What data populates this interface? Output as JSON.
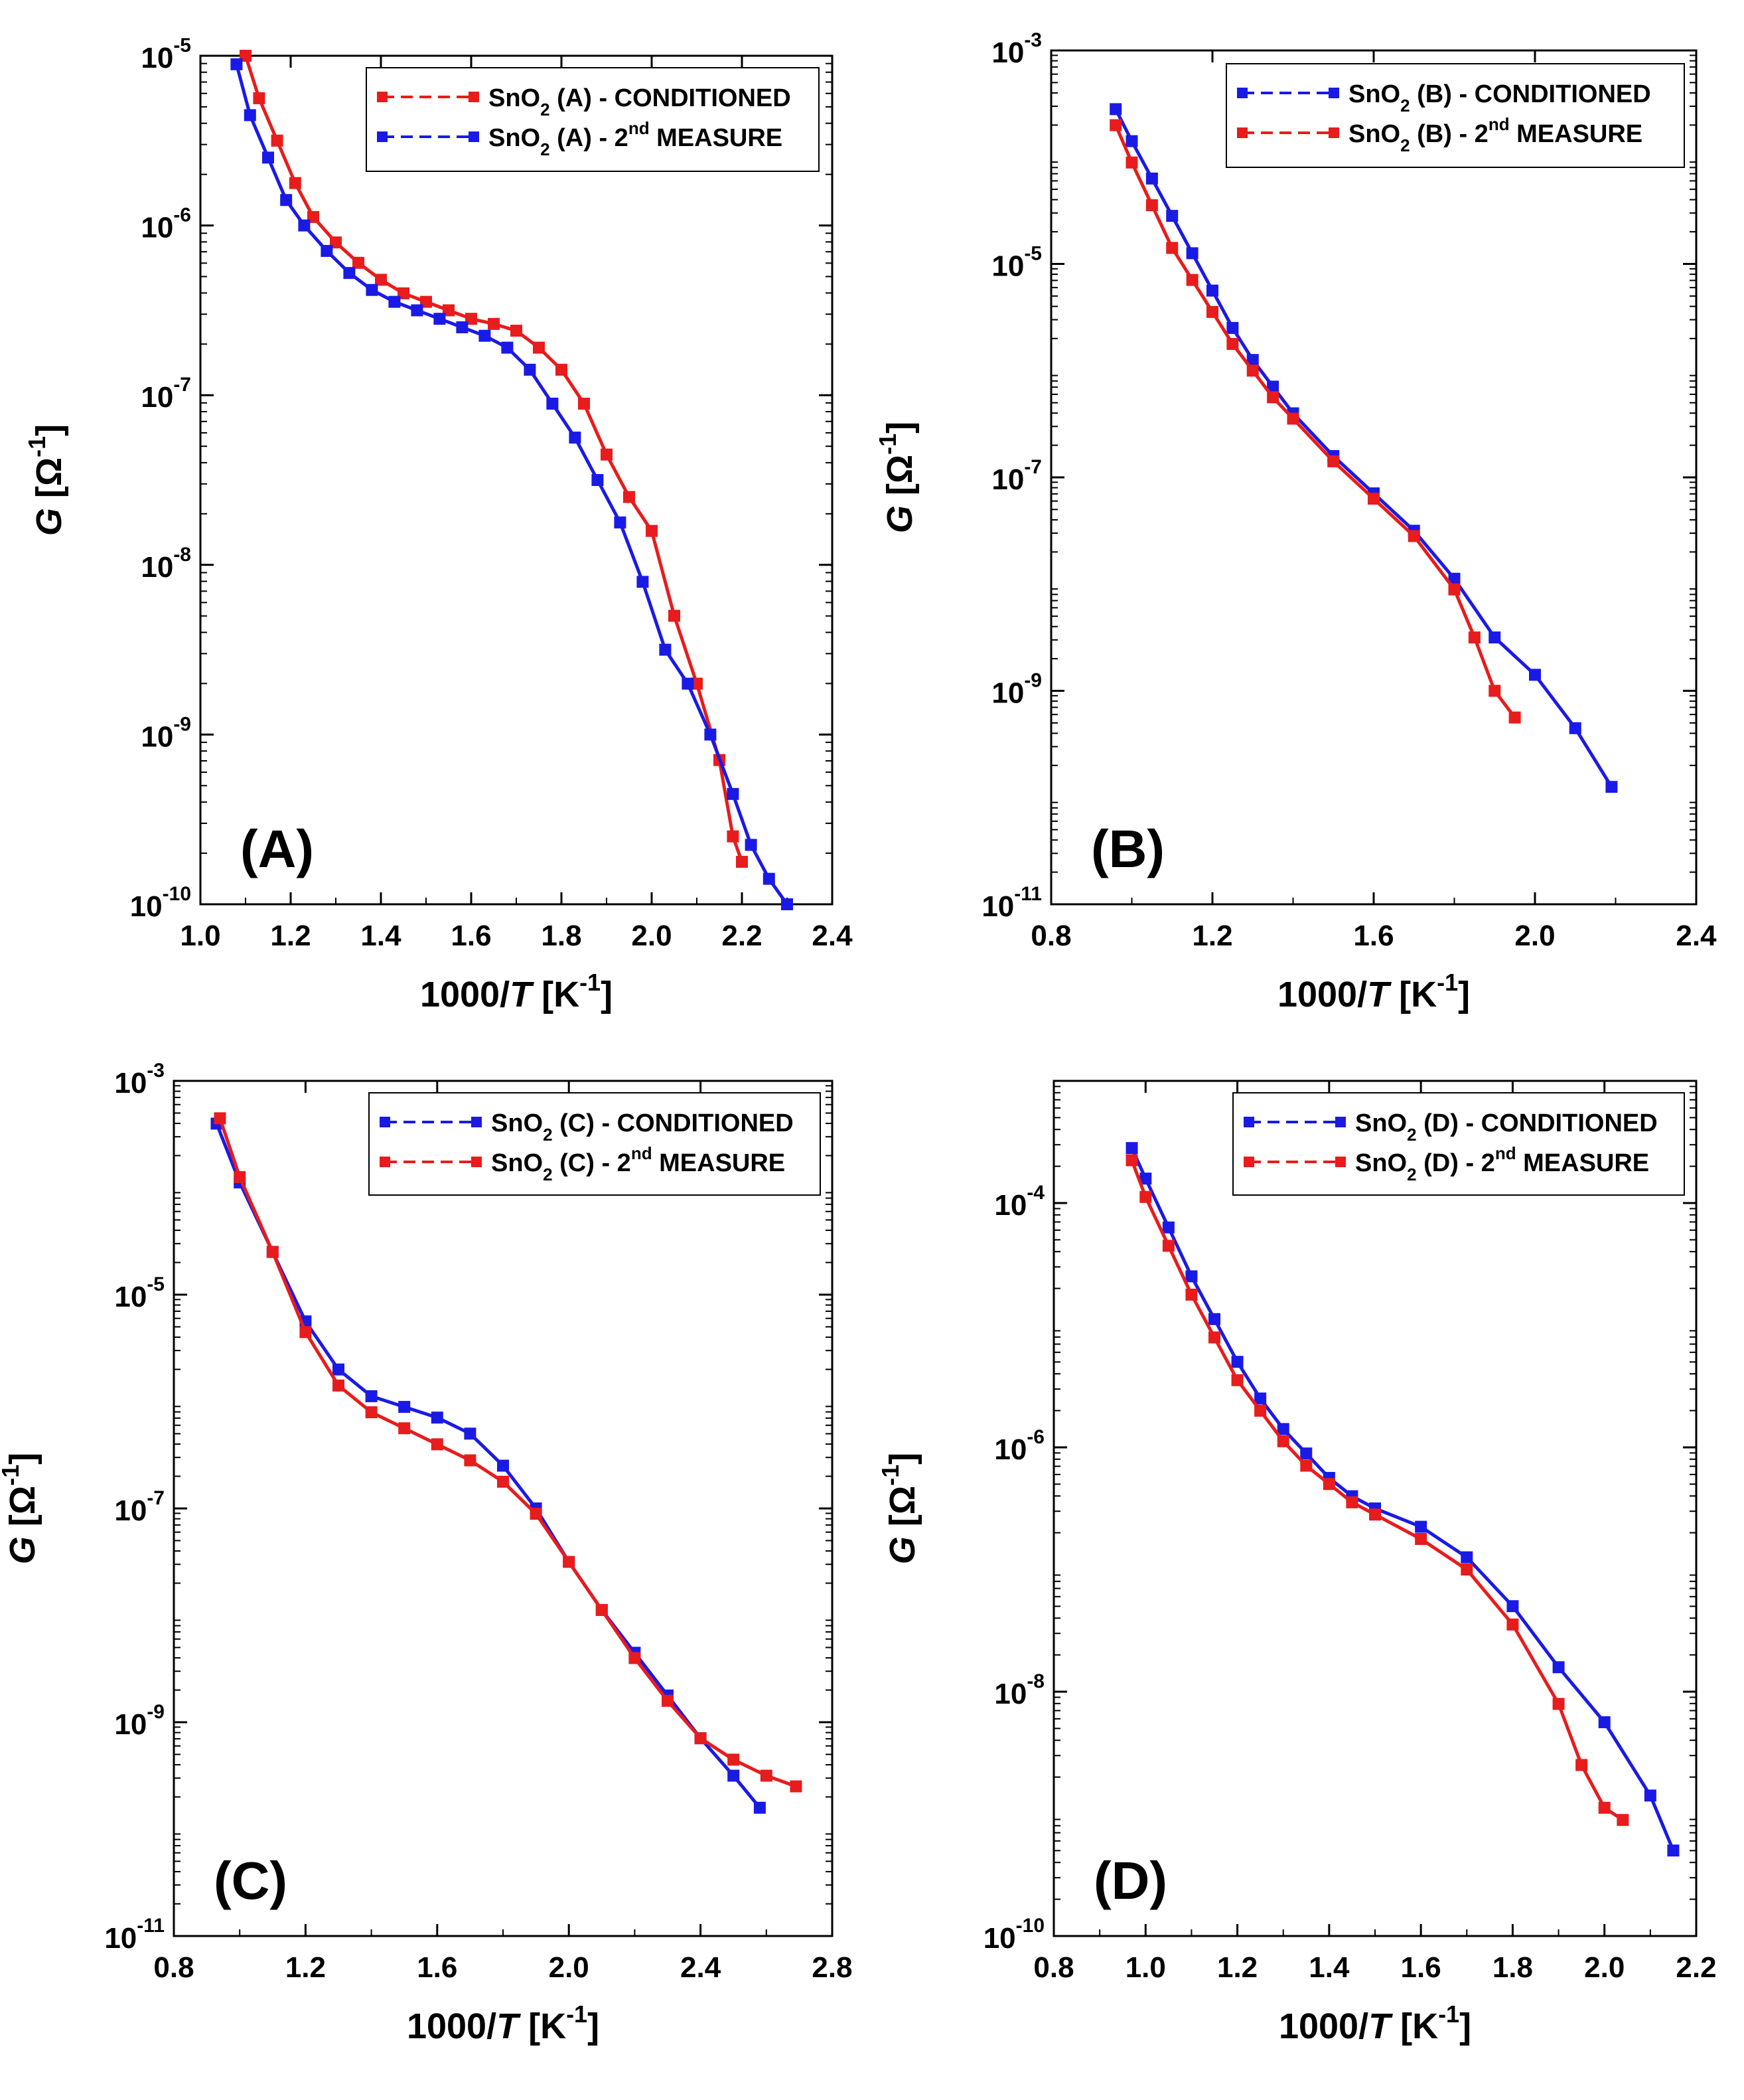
{
  "chart_data": [
    {
      "id": "A",
      "type": "line",
      "panel_label": "(A)",
      "xlabel": "1000/T [K-1]",
      "xlabel_parts": {
        "pre": "1000/",
        "var": "T",
        "unit": " [K",
        "sup": "-1",
        "post": "]"
      },
      "ylabel_parts": {
        "var": "G",
        "unit": " [Ω",
        "sup": "-1",
        "post": "]"
      },
      "xlim": [
        1.0,
        2.4
      ],
      "xticks": [
        "1.0",
        "1.2",
        "1.4",
        "1.6",
        "1.8",
        "2.0",
        "2.2",
        "2.4"
      ],
      "yscale": "log",
      "ylim_exp": [
        -10,
        -5
      ],
      "yticks": [
        {
          "base": "10",
          "exp": "-5",
          "e": -5
        },
        {
          "base": "10",
          "exp": "-6",
          "e": -6
        },
        {
          "base": "10",
          "exp": "-7",
          "e": -7
        },
        {
          "base": "10",
          "exp": "-8",
          "e": -8
        },
        {
          "base": "10",
          "exp": "-9",
          "e": -9
        },
        {
          "base": "10",
          "exp": "-10",
          "e": -10
        }
      ],
      "legend_position": "top-right",
      "series": [
        {
          "name": "SnO2 (A) - CONDITIONED",
          "legend": {
            "pre": "SnO",
            "sub": "2",
            "mid": " (A) - CONDITIONED",
            "sup": "",
            "post": ""
          },
          "color": "#e81c1c",
          "x": [
            1.1,
            1.13,
            1.17,
            1.21,
            1.25,
            1.3,
            1.35,
            1.4,
            1.45,
            1.5,
            1.55,
            1.6,
            1.65,
            1.7,
            1.75,
            1.8,
            1.85,
            1.9,
            1.95,
            2.0,
            2.05,
            2.1,
            2.15,
            2.18,
            2.2
          ],
          "log10_y": [
            -5.0,
            -5.25,
            -5.5,
            -5.75,
            -5.95,
            -6.1,
            -6.22,
            -6.32,
            -6.4,
            -6.45,
            -6.5,
            -6.55,
            -6.58,
            -6.62,
            -6.72,
            -6.85,
            -7.05,
            -7.35,
            -7.6,
            -7.8,
            -8.3,
            -8.7,
            -9.15,
            -9.6,
            -9.75
          ]
        },
        {
          "name": "SnO2 (A) - 2nd MEASURE",
          "legend": {
            "pre": "SnO",
            "sub": "2",
            "mid": " (A) - 2",
            "sup": "nd",
            "post": " MEASURE"
          },
          "color": "#1a1ae6",
          "x": [
            1.08,
            1.11,
            1.15,
            1.19,
            1.23,
            1.28,
            1.33,
            1.38,
            1.43,
            1.48,
            1.53,
            1.58,
            1.63,
            1.68,
            1.73,
            1.78,
            1.83,
            1.88,
            1.93,
            1.98,
            2.03,
            2.08,
            2.13,
            2.18,
            2.22,
            2.26,
            2.3
          ],
          "log10_y": [
            -5.05,
            -5.35,
            -5.6,
            -5.85,
            -6.0,
            -6.15,
            -6.28,
            -6.38,
            -6.45,
            -6.5,
            -6.55,
            -6.6,
            -6.65,
            -6.72,
            -6.85,
            -7.05,
            -7.25,
            -7.5,
            -7.75,
            -8.1,
            -8.5,
            -8.7,
            -9.0,
            -9.35,
            -9.65,
            -9.85,
            -10.0
          ]
        }
      ]
    },
    {
      "id": "B",
      "type": "line",
      "panel_label": "(B)",
      "xlabel": "1000/T [K-1]",
      "xlabel_parts": {
        "pre": "1000/",
        "var": "T",
        "unit": " [K",
        "sup": "-1",
        "post": "]"
      },
      "ylabel_parts": {
        "var": "G",
        "unit": " [Ω",
        "sup": "-1",
        "post": "]"
      },
      "xlim": [
        0.8,
        2.4
      ],
      "xticks": [
        "0.8",
        "1.2",
        "1.6",
        "2.0",
        "2.4"
      ],
      "yscale": "log",
      "ylim_exp": [
        -11,
        -3
      ],
      "yticks": [
        {
          "base": "10",
          "exp": "-3",
          "e": -3
        },
        {
          "base": "10",
          "exp": "-5",
          "e": -5
        },
        {
          "base": "10",
          "exp": "-7",
          "e": -7
        },
        {
          "base": "10",
          "exp": "-9",
          "e": -9
        },
        {
          "base": "10",
          "exp": "-11",
          "e": -11
        }
      ],
      "legend_position": "top-right",
      "series": [
        {
          "name": "SnO2 (B) - CONDITIONED",
          "legend": {
            "pre": "SnO",
            "sub": "2",
            "mid": " (B) - CONDITIONED",
            "sup": "",
            "post": ""
          },
          "color": "#1a1ae6",
          "x": [
            0.96,
            1.0,
            1.05,
            1.1,
            1.15,
            1.2,
            1.25,
            1.3,
            1.35,
            1.4,
            1.5,
            1.6,
            1.7,
            1.8,
            1.9,
            2.0,
            2.1,
            2.19
          ],
          "log10_y": [
            -3.55,
            -3.85,
            -4.2,
            -4.55,
            -4.9,
            -5.25,
            -5.6,
            -5.9,
            -6.15,
            -6.4,
            -6.8,
            -7.15,
            -7.5,
            -7.95,
            -8.5,
            -8.85,
            -9.35,
            -9.9
          ]
        },
        {
          "name": "SnO2 (B) - 2nd MEASURE",
          "legend": {
            "pre": "SnO",
            "sub": "2",
            "mid": " (B) - 2",
            "sup": "nd",
            "post": " MEASURE"
          },
          "color": "#e81c1c",
          "x": [
            0.96,
            1.0,
            1.05,
            1.1,
            1.15,
            1.2,
            1.25,
            1.3,
            1.35,
            1.4,
            1.5,
            1.6,
            1.7,
            1.8,
            1.85,
            1.9,
            1.95
          ],
          "log10_y": [
            -3.7,
            -4.05,
            -4.45,
            -4.85,
            -5.15,
            -5.45,
            -5.75,
            -6.0,
            -6.25,
            -6.45,
            -6.85,
            -7.2,
            -7.55,
            -8.05,
            -8.5,
            -9.0,
            -9.25
          ]
        }
      ]
    },
    {
      "id": "C",
      "type": "line",
      "panel_label": "(C)",
      "xlabel": "1000/T [K-1]",
      "xlabel_parts": {
        "pre": "1000/",
        "var": "T",
        "unit": " [K",
        "sup": "-1",
        "post": "]"
      },
      "ylabel_parts": {
        "var": "G",
        "unit": " [Ω",
        "sup": "-1",
        "post": "]"
      },
      "xlim": [
        0.8,
        2.8
      ],
      "xticks": [
        "0.8",
        "1.2",
        "1.6",
        "2.0",
        "2.4",
        "2.8"
      ],
      "yscale": "log",
      "ylim_exp": [
        -11,
        -3
      ],
      "yticks": [
        {
          "base": "10",
          "exp": "-3",
          "e": -3
        },
        {
          "base": "10",
          "exp": "-5",
          "e": -5
        },
        {
          "base": "10",
          "exp": "-7",
          "e": -7
        },
        {
          "base": "10",
          "exp": "-9",
          "e": -9
        },
        {
          "base": "10",
          "exp": "-11",
          "e": -11
        }
      ],
      "legend_position": "top-right",
      "series": [
        {
          "name": "SnO2 (C) - CONDITIONED",
          "legend": {
            "pre": "SnO",
            "sub": "2",
            "mid": " (C) - CONDITIONED",
            "sup": "",
            "post": ""
          },
          "color": "#1a1ae6",
          "x": [
            0.93,
            1.0,
            1.1,
            1.2,
            1.3,
            1.4,
            1.5,
            1.6,
            1.7,
            1.8,
            1.9,
            2.0,
            2.1,
            2.2,
            2.3,
            2.4,
            2.5,
            2.58
          ],
          "log10_y": [
            -3.4,
            -3.95,
            -4.6,
            -5.25,
            -5.7,
            -5.95,
            -6.05,
            -6.15,
            -6.3,
            -6.6,
            -7.0,
            -7.5,
            -7.95,
            -8.35,
            -8.75,
            -9.15,
            -9.5,
            -9.8
          ]
        },
        {
          "name": "SnO2 (C) - 2nd MEASURE",
          "legend": {
            "pre": "SnO",
            "sub": "2",
            "mid": " (C) - 2",
            "sup": "nd",
            "post": " MEASURE"
          },
          "color": "#e81c1c",
          "x": [
            0.94,
            1.0,
            1.1,
            1.2,
            1.3,
            1.4,
            1.5,
            1.6,
            1.7,
            1.8,
            1.9,
            2.0,
            2.1,
            2.2,
            2.3,
            2.4,
            2.5,
            2.6,
            2.69
          ],
          "log10_y": [
            -3.35,
            -3.9,
            -4.6,
            -5.35,
            -5.85,
            -6.1,
            -6.25,
            -6.4,
            -6.55,
            -6.75,
            -7.05,
            -7.5,
            -7.95,
            -8.4,
            -8.8,
            -9.15,
            -9.35,
            -9.5,
            -9.6
          ]
        }
      ]
    },
    {
      "id": "D",
      "type": "line",
      "panel_label": "(D)",
      "xlabel": "1000/T [K-1]",
      "xlabel_parts": {
        "pre": "1000/",
        "var": "T",
        "unit": " [K",
        "sup": "-1",
        "post": "]"
      },
      "ylabel_parts": {
        "var": "G",
        "unit": " [Ω",
        "sup": "-1",
        "post": "]"
      },
      "xlim": [
        0.8,
        2.2
      ],
      "xticks": [
        "0.8",
        "1.0",
        "1.2",
        "1.4",
        "1.6",
        "1.8",
        "2.0",
        "2.2"
      ],
      "yscale": "log",
      "ylim_exp": [
        -10,
        -3
      ],
      "yticks": [
        {
          "base": "10",
          "exp": "-4",
          "e": -4
        },
        {
          "base": "10",
          "exp": "-6",
          "e": -6
        },
        {
          "base": "10",
          "exp": "-8",
          "e": -8
        },
        {
          "base": "10",
          "exp": "-10",
          "e": -10
        }
      ],
      "legend_position": "top-right",
      "series": [
        {
          "name": "SnO2 (D) - CONDITIONED",
          "legend": {
            "pre": "SnO",
            "sub": "2",
            "mid": " (D) - CONDITIONED",
            "sup": "",
            "post": ""
          },
          "color": "#1a1ae6",
          "x": [
            0.97,
            1.0,
            1.05,
            1.1,
            1.15,
            1.2,
            1.25,
            1.3,
            1.35,
            1.4,
            1.45,
            1.5,
            1.6,
            1.7,
            1.8,
            1.9,
            2.0,
            2.1,
            2.15
          ],
          "log10_y": [
            -3.55,
            -3.8,
            -4.2,
            -4.6,
            -4.95,
            -5.3,
            -5.6,
            -5.85,
            -6.05,
            -6.25,
            -6.4,
            -6.5,
            -6.65,
            -6.9,
            -7.3,
            -7.8,
            -8.25,
            -8.85,
            -9.3
          ]
        },
        {
          "name": "SnO2 (D) - 2nd MEASURE",
          "legend": {
            "pre": "SnO",
            "sub": "2",
            "mid": " (D) - 2",
            "sup": "nd",
            "post": " MEASURE"
          },
          "color": "#e81c1c",
          "x": [
            0.97,
            1.0,
            1.05,
            1.1,
            1.15,
            1.2,
            1.25,
            1.3,
            1.35,
            1.4,
            1.45,
            1.5,
            1.6,
            1.7,
            1.8,
            1.9,
            1.95,
            2.0,
            2.04
          ],
          "log10_y": [
            -3.65,
            -3.95,
            -4.35,
            -4.75,
            -5.1,
            -5.45,
            -5.7,
            -5.95,
            -6.15,
            -6.3,
            -6.45,
            -6.55,
            -6.75,
            -7.0,
            -7.45,
            -8.1,
            -8.6,
            -8.95,
            -9.05
          ]
        }
      ]
    }
  ]
}
